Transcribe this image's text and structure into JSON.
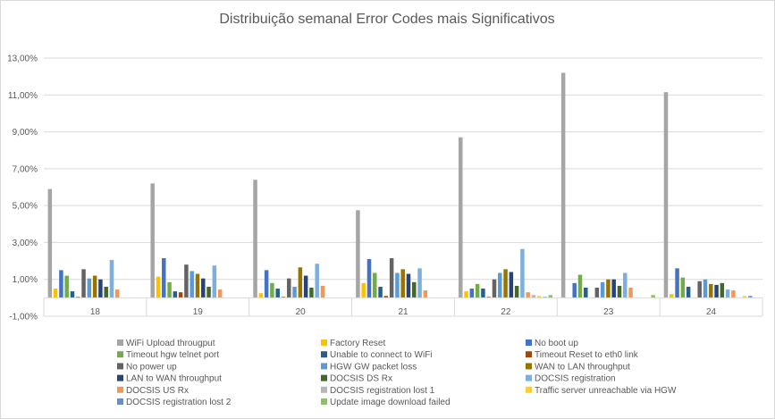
{
  "chart_data": {
    "type": "bar",
    "title": "Distribuição semanal Error Codes mais Significativos",
    "xlabel": "",
    "ylabel": "",
    "categories": [
      "18",
      "19",
      "20",
      "21",
      "22",
      "23",
      "24"
    ],
    "ylim": [
      -1.0,
      13.0
    ],
    "yticks": [
      -1.0,
      1.0,
      3.0,
      5.0,
      7.0,
      9.0,
      11.0,
      13.0
    ],
    "ytick_labels": [
      "-1,00%",
      "1,00%",
      "3,00%",
      "5,00%",
      "7,00%",
      "9,00%",
      "11,00%",
      "13,00%"
    ],
    "value_unit": "percent",
    "grid": true,
    "legend_position": "bottom",
    "series": [
      {
        "name": "WiFi Upload througput",
        "color": "#a5a5a5",
        "values": [
          5.9,
          6.2,
          6.4,
          4.75,
          8.7,
          12.2,
          11.15
        ]
      },
      {
        "name": "Factory Reset",
        "color": "#ffc000",
        "values": [
          0.5,
          1.15,
          0.25,
          0.8,
          0.35,
          0.0,
          0.2
        ]
      },
      {
        "name": "No boot up",
        "color": "#4472c4",
        "values": [
          1.5,
          2.15,
          1.5,
          2.1,
          0.5,
          0.8,
          1.6
        ]
      },
      {
        "name": "Timeout hgw telnet port",
        "color": "#70ad47",
        "values": [
          1.2,
          0.85,
          0.8,
          1.35,
          0.75,
          1.25,
          1.1
        ]
      },
      {
        "name": "Unable to connect to WiFi",
        "color": "#255e91",
        "values": [
          0.35,
          0.35,
          0.5,
          0.6,
          0.5,
          0.55,
          0.6
        ]
      },
      {
        "name": "Timeout Reset to eth0 link",
        "color": "#9e480e",
        "values": [
          0.05,
          0.3,
          0.05,
          0.1,
          0.05,
          0.0,
          0.0
        ]
      },
      {
        "name": "No power up",
        "color": "#636363",
        "values": [
          1.55,
          1.8,
          1.05,
          2.15,
          1.0,
          0.55,
          0.9
        ]
      },
      {
        "name": "HGW GW packet loss",
        "color": "#5b9bd5",
        "values": [
          1.05,
          1.45,
          0.6,
          1.35,
          1.35,
          0.85,
          1.0
        ]
      },
      {
        "name": "WAN to LAN throughput",
        "color": "#997300",
        "values": [
          1.2,
          1.3,
          1.65,
          1.55,
          1.55,
          1.0,
          0.75
        ]
      },
      {
        "name": "LAN to WAN throughput",
        "color": "#264478",
        "values": [
          1.0,
          1.05,
          1.2,
          1.3,
          1.4,
          1.0,
          0.7
        ]
      },
      {
        "name": "DOCSIS DS Rx",
        "color": "#43682b",
        "values": [
          0.6,
          0.6,
          0.55,
          0.85,
          0.65,
          0.65,
          0.8
        ]
      },
      {
        "name": "DOCSIS registration",
        "color": "#7cafdd",
        "values": [
          2.05,
          1.75,
          1.85,
          1.6,
          2.65,
          1.35,
          0.45
        ]
      },
      {
        "name": "DOCSIS US Rx",
        "color": "#f1975a",
        "values": [
          0.45,
          0.45,
          0.65,
          0.4,
          0.3,
          0.55,
          0.4
        ]
      },
      {
        "name": "DOCSIS registration lost 1",
        "color": "#b7b7b7",
        "values": [
          0.0,
          0.0,
          0.0,
          0.0,
          0.15,
          0.0,
          0.0
        ]
      },
      {
        "name": "Traffic server unreachable via HGW",
        "color": "#ffcd33",
        "values": [
          0.0,
          0.0,
          0.0,
          0.0,
          0.1,
          0.0,
          0.1
        ]
      },
      {
        "name": "DOCSIS registration lost 2",
        "color": "#698ed0",
        "values": [
          0.0,
          0.0,
          0.0,
          0.0,
          0.05,
          0.0,
          0.1
        ]
      },
      {
        "name": "Update image download failed",
        "color": "#8cc168",
        "values": [
          0.0,
          0.0,
          0.0,
          0.0,
          0.15,
          0.15,
          0.0
        ]
      }
    ]
  }
}
